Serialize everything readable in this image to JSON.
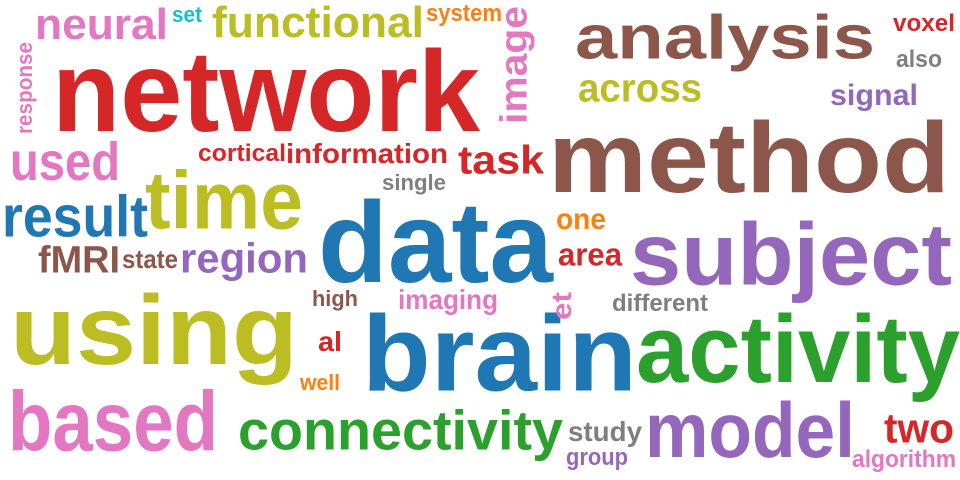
{
  "words": [
    {
      "text": "network",
      "color": "#d62728"
    },
    {
      "text": "analysis",
      "color": "#8c564b"
    },
    {
      "text": "method",
      "color": "#8c564b"
    },
    {
      "text": "data",
      "color": "#1f77b4"
    },
    {
      "text": "brain",
      "color": "#1f77b4"
    },
    {
      "text": "using",
      "color": "#bcbd22"
    },
    {
      "text": "activity",
      "color": "#2ca02c"
    },
    {
      "text": "subject",
      "color": "#9467bd"
    },
    {
      "text": "time",
      "color": "#bcbd22"
    },
    {
      "text": "based",
      "color": "#e377c2"
    },
    {
      "text": "model",
      "color": "#9467bd"
    },
    {
      "text": "connectivity",
      "color": "#2ca02c"
    },
    {
      "text": "functional",
      "color": "#bcbd22"
    },
    {
      "text": "neural",
      "color": "#e377c2"
    },
    {
      "text": "result",
      "color": "#1f77b4"
    },
    {
      "text": "used",
      "color": "#e377c2"
    },
    {
      "text": "region",
      "color": "#9467bd"
    },
    {
      "text": "fMRI",
      "color": "#8c564b"
    },
    {
      "text": "across",
      "color": "#bcbd22"
    },
    {
      "text": "information",
      "color": "#d62728"
    },
    {
      "text": "task",
      "color": "#d62728"
    },
    {
      "text": "image",
      "color": "#e377c2"
    },
    {
      "text": "signal",
      "color": "#9467bd"
    },
    {
      "text": "two",
      "color": "#d62728"
    },
    {
      "text": "cortical",
      "color": "#d62728"
    },
    {
      "text": "imaging",
      "color": "#e377c2"
    },
    {
      "text": "area",
      "color": "#d62728"
    },
    {
      "text": "one",
      "color": "#ff7f0e"
    },
    {
      "text": "voxel",
      "color": "#d62728"
    },
    {
      "text": "also",
      "color": "#7f7f7f"
    },
    {
      "text": "system",
      "color": "#ff7f0e"
    },
    {
      "text": "set",
      "color": "#17becf"
    },
    {
      "text": "response",
      "color": "#e377c2"
    },
    {
      "text": "single",
      "color": "#7f7f7f"
    },
    {
      "text": "state",
      "color": "#8c564b"
    },
    {
      "text": "high",
      "color": "#8c564b"
    },
    {
      "text": "al",
      "color": "#d62728"
    },
    {
      "text": "et",
      "color": "#e377c2"
    },
    {
      "text": "different",
      "color": "#7f7f7f"
    },
    {
      "text": "well",
      "color": "#ff7f0e"
    },
    {
      "text": "study",
      "color": "#7f7f7f"
    },
    {
      "text": "group",
      "color": "#9467bd"
    },
    {
      "text": "algorithm",
      "color": "#e377c2"
    }
  ]
}
